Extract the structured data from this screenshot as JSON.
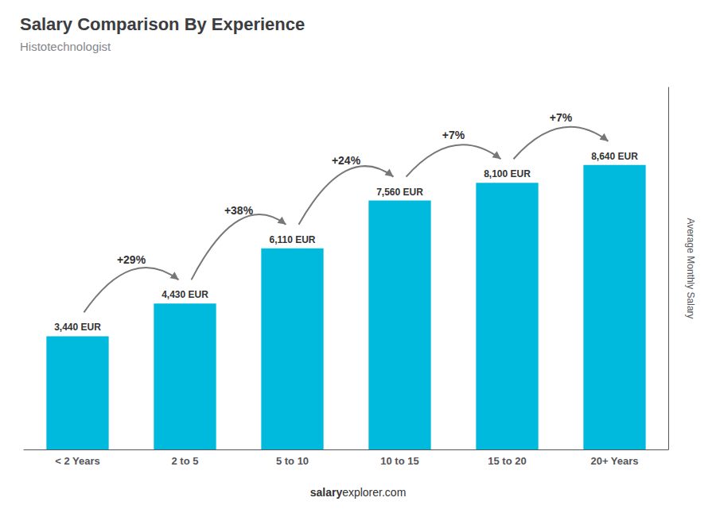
{
  "chart_data": {
    "type": "bar",
    "title": "Salary Comparison By Experience",
    "subtitle": "Histotechnologist",
    "categories": [
      "< 2 Years",
      "2 to 5",
      "5 to 10",
      "10 to 15",
      "15 to 20",
      "20+ Years"
    ],
    "values": [
      3440,
      4430,
      6110,
      7560,
      8100,
      8640
    ],
    "value_labels": [
      "3,440 EUR",
      "4,430 EUR",
      "6,110 EUR",
      "7,560 EUR",
      "8,100 EUR",
      "8,640 EUR"
    ],
    "data_labels": true,
    "color": "#00BADD",
    "ylabel": "Average Monthly Salary",
    "ylim": [
      0,
      11000
    ],
    "tick_labels": "x",
    "grid": false,
    "annotations": [
      "+29%",
      "+38%",
      "+24%",
      "+7%",
      "+7%"
    ],
    "footer": [
      "salary",
      "explorer.com"
    ]
  }
}
